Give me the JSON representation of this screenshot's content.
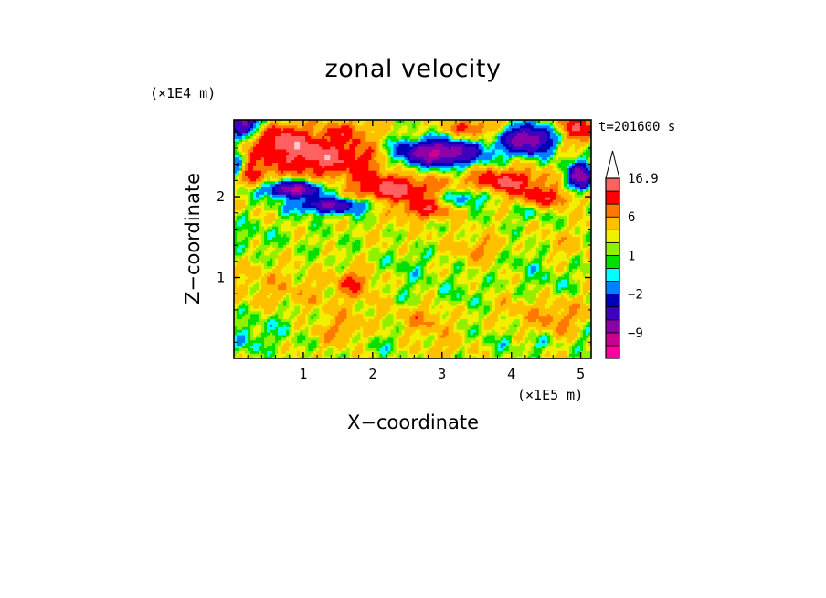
{
  "chart_data": {
    "type": "heatmap",
    "title": "zonal velocity",
    "xlabel": "X−coordinate",
    "ylabel": "Z−coordinate",
    "x_unit": "(×1E5 m)",
    "y_unit": "(×1E4 m)",
    "time_stamp": "t=201600 s",
    "xlim": [
      0,
      5.15
    ],
    "ylim": [
      0,
      2.95
    ],
    "x_ticks": [
      "1",
      "2",
      "3",
      "4",
      "5"
    ],
    "y_ticks": [
      "1",
      "2"
    ],
    "colorbar": {
      "levels": [
        -16,
        -12,
        -9,
        -6,
        -4,
        -2,
        -1,
        0,
        1,
        2,
        4,
        6,
        9,
        12,
        16.9
      ],
      "colors": [
        "#ff00a0",
        "#cc0090",
        "#8c00a8",
        "#4000c0",
        "#0000b8",
        "#0080ff",
        "#00ffff",
        "#00e000",
        "#90f000",
        "#f0f000",
        "#ffc000",
        "#ff7800",
        "#ff0000",
        "#ff6060",
        "#ffc8c8",
        "#ffffff"
      ],
      "labels": [
        "16.9",
        "6",
        "1",
        "−2",
        "−9"
      ],
      "label_levels": [
        16.9,
        6,
        1,
        -2,
        -9
      ],
      "extend": "max"
    }
  }
}
